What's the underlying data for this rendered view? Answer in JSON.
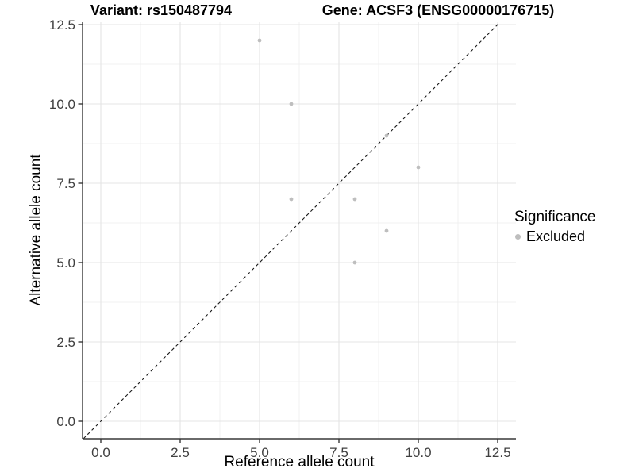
{
  "chart_data": {
    "type": "scatter",
    "title_left": "Variant: rs150487794",
    "title_right": "Gene: ACSF3 (ENSG00000176715)",
    "xlabel": "Reference allele count",
    "ylabel": "Alternative allele count",
    "xlim": [
      -0.575,
      13.075
    ],
    "ylim": [
      -0.55,
      12.575
    ],
    "xticks": [
      0,
      2.5,
      5,
      7.5,
      10,
      12.5
    ],
    "yticks": [
      0,
      2.5,
      5,
      7.5,
      10,
      12.5
    ],
    "xtick_labels": [
      "0.0",
      "2.5",
      "5.0",
      "7.5",
      "10.0",
      "12.5"
    ],
    "ytick_labels": [
      "0.0",
      "2.5",
      "5.0",
      "7.5",
      "10.0",
      "12.5"
    ],
    "grid": "major and minor gridlines on white background",
    "identity_line": {
      "equation": "y = x",
      "style": "dashed",
      "color": "#1A1A1A"
    },
    "series": [
      {
        "name": "Excluded",
        "color": "#BEBEBE",
        "points": [
          [
            5,
            12
          ],
          [
            6,
            10
          ],
          [
            6,
            7
          ],
          [
            8,
            7
          ],
          [
            9,
            9
          ],
          [
            10,
            8
          ],
          [
            9,
            6
          ],
          [
            8,
            5
          ]
        ]
      }
    ],
    "legend": {
      "title": "Significance",
      "position": "right",
      "entries": [
        {
          "label": "Excluded",
          "color": "#BEBEBE"
        }
      ]
    },
    "colors": {
      "axis_line": "#383838",
      "tick_text": "#404040",
      "grid_major": "#E4E4E4",
      "grid_minor": "#F0F0F0"
    }
  }
}
